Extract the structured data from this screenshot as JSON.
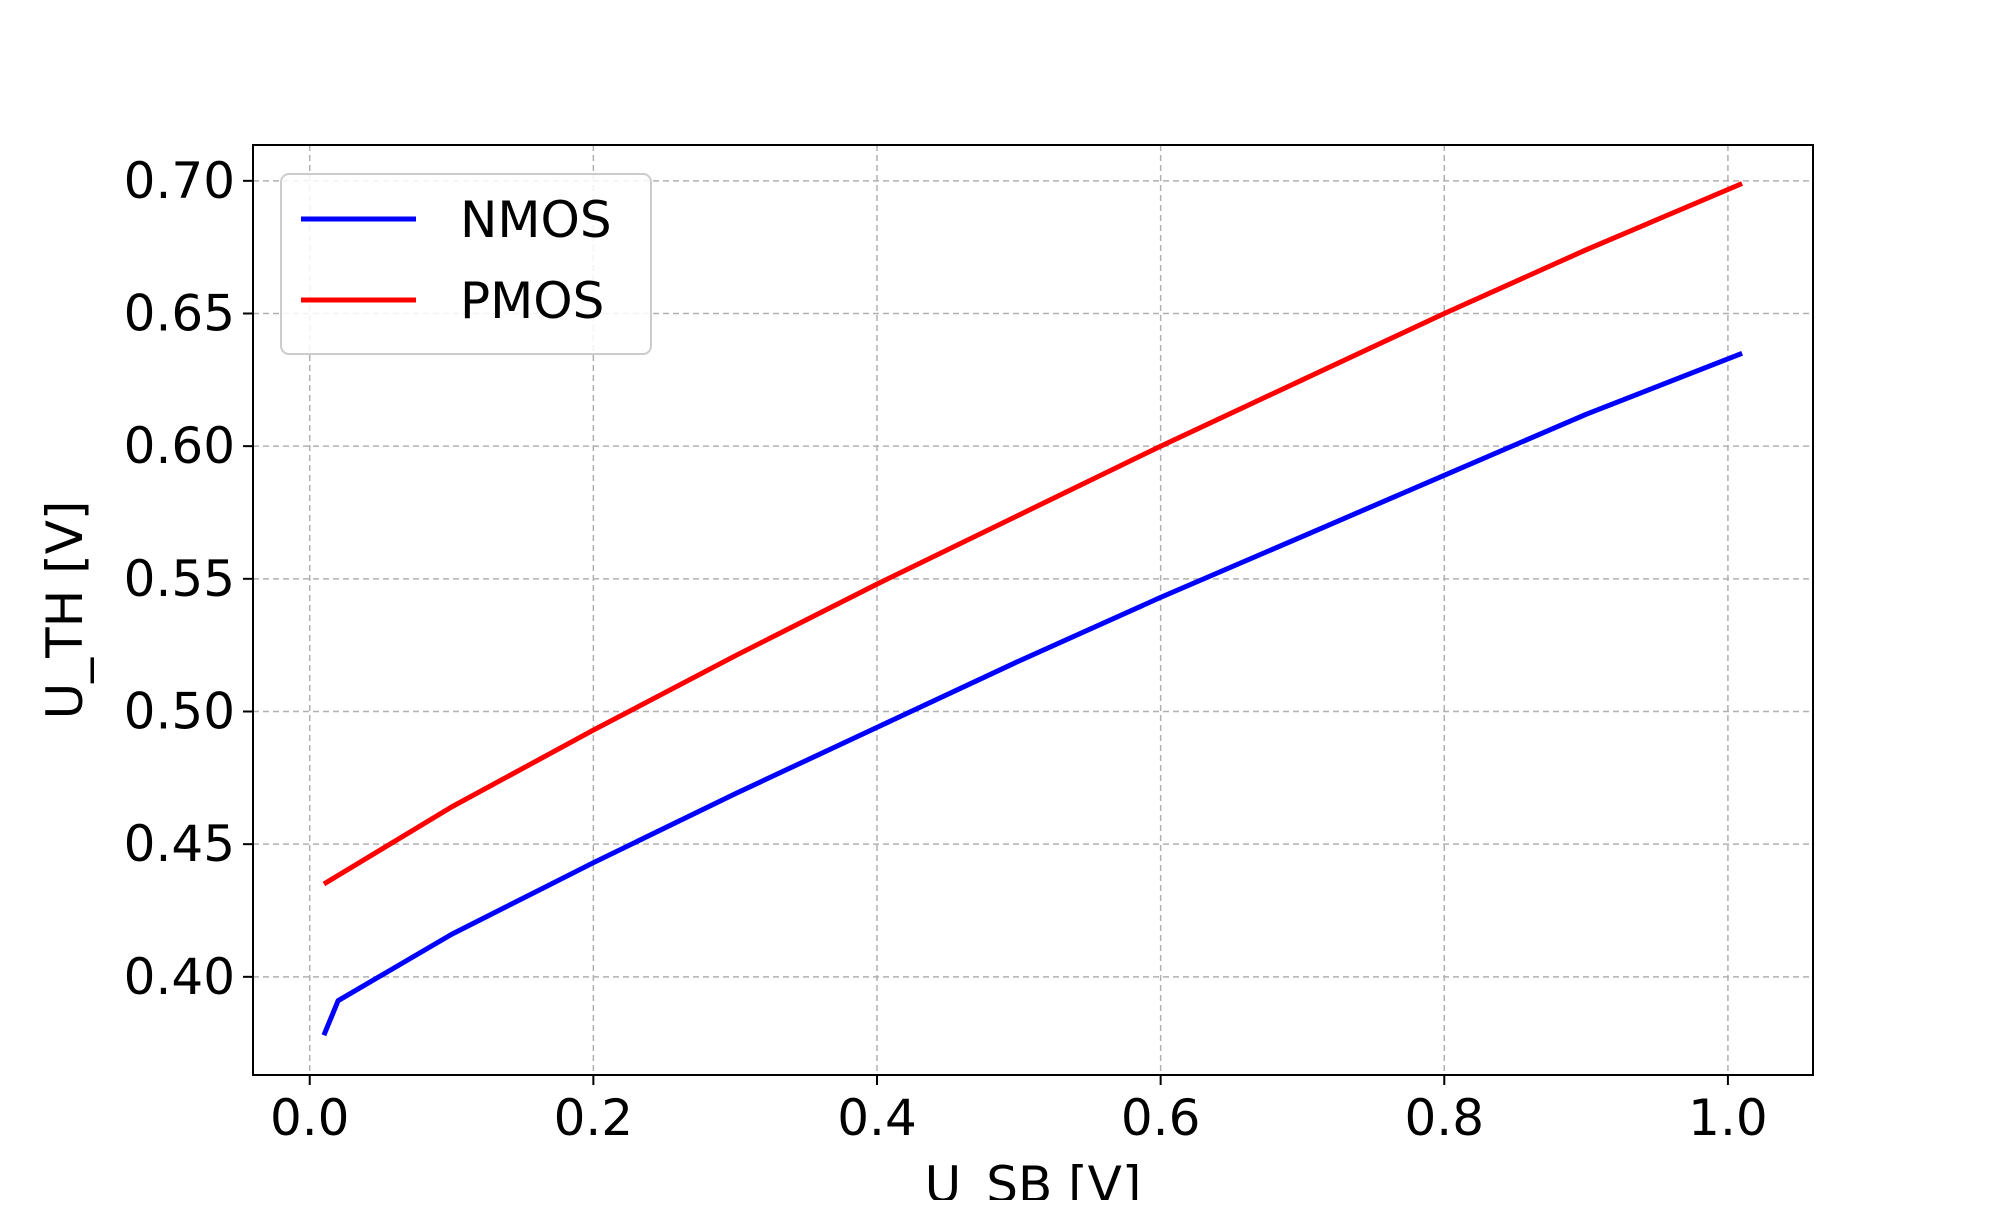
{
  "chart_data": {
    "type": "line",
    "title": "",
    "xlabel": "U_SB [V]",
    "ylabel": "U_TH [V]",
    "xlim": [
      -0.04,
      1.06
    ],
    "ylim": [
      0.363,
      0.7135
    ],
    "xticks": [
      0.0,
      0.2,
      0.4,
      0.6,
      0.8,
      1.0
    ],
    "xtick_labels": [
      "0.0",
      "0.2",
      "0.4",
      "0.6",
      "0.8",
      "1.0"
    ],
    "yticks": [
      0.4,
      0.45,
      0.5,
      0.55,
      0.6,
      0.65,
      0.7
    ],
    "ytick_labels": [
      "0.40",
      "0.45",
      "0.50",
      "0.55",
      "0.60",
      "0.65",
      "0.70"
    ],
    "grid": true,
    "legend_position": "top-left",
    "series": [
      {
        "name": "NMOS",
        "color": "#0000ff",
        "x": [
          0.01,
          0.02,
          0.1,
          0.2,
          0.3,
          0.4,
          0.5,
          0.6,
          0.7,
          0.8,
          0.9,
          1.01
        ],
        "y": [
          0.378,
          0.391,
          0.416,
          0.443,
          0.469,
          0.494,
          0.519,
          0.543,
          0.566,
          0.589,
          0.612,
          0.635
        ]
      },
      {
        "name": "PMOS",
        "color": "#ff0000",
        "x": [
          0.01,
          0.1,
          0.2,
          0.3,
          0.4,
          0.5,
          0.6,
          0.7,
          0.8,
          0.9,
          1.01
        ],
        "y": [
          0.435,
          0.464,
          0.493,
          0.521,
          0.548,
          0.574,
          0.6,
          0.625,
          0.65,
          0.674,
          0.699
        ]
      }
    ]
  }
}
